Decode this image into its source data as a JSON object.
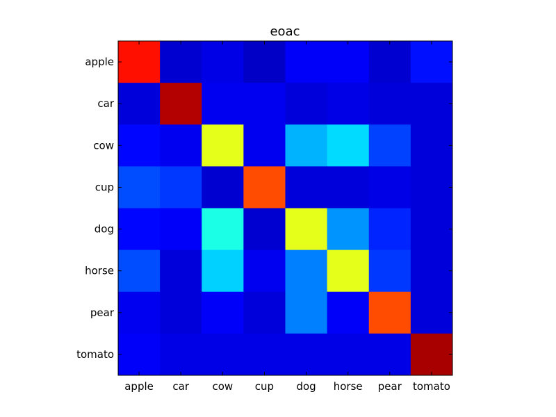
{
  "chart_data": {
    "type": "heatmap",
    "title": "eoac",
    "xlabel": "",
    "ylabel": "",
    "x_categories": [
      "apple",
      "car",
      "cow",
      "cup",
      "dog",
      "horse",
      "pear",
      "tomato"
    ],
    "y_categories": [
      "apple",
      "car",
      "cow",
      "cup",
      "dog",
      "horse",
      "pear",
      "tomato"
    ],
    "colormap": "jet",
    "value_range": [
      0,
      1
    ],
    "grid": false,
    "legend": "none",
    "values": [
      [
        0.86,
        0.08,
        0.1,
        0.07,
        0.12,
        0.12,
        0.08,
        0.14
      ],
      [
        0.09,
        0.95,
        0.11,
        0.11,
        0.09,
        0.1,
        0.09,
        0.09
      ],
      [
        0.13,
        0.11,
        0.6,
        0.11,
        0.3,
        0.34,
        0.19,
        0.09
      ],
      [
        0.2,
        0.18,
        0.08,
        0.8,
        0.09,
        0.09,
        0.1,
        0.09
      ],
      [
        0.13,
        0.12,
        0.4,
        0.08,
        0.6,
        0.27,
        0.16,
        0.09
      ],
      [
        0.2,
        0.09,
        0.33,
        0.11,
        0.25,
        0.6,
        0.18,
        0.09
      ],
      [
        0.11,
        0.09,
        0.12,
        0.09,
        0.25,
        0.12,
        0.8,
        0.09
      ],
      [
        0.12,
        0.1,
        0.1,
        0.1,
        0.1,
        0.1,
        0.1,
        0.96
      ]
    ]
  }
}
